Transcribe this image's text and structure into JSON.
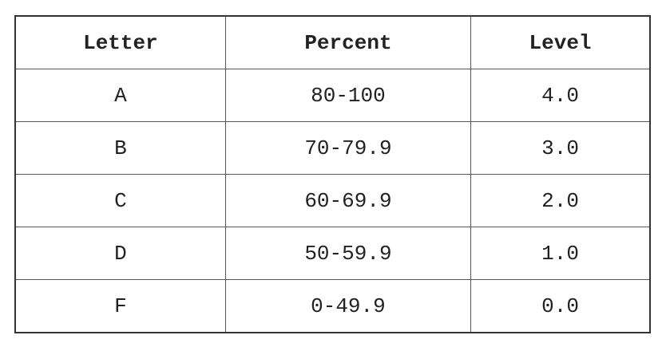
{
  "table": {
    "header": [
      "Letter",
      "Percent",
      "Level"
    ],
    "rows": [
      [
        "A",
        "80-100",
        "4.0"
      ],
      [
        "B",
        "70-79.9",
        "3.0"
      ],
      [
        "C",
        "60-69.9",
        "2.0"
      ],
      [
        "D",
        "50-59.9",
        "1.0"
      ],
      [
        "F",
        "0-49.9",
        "0.0"
      ]
    ]
  }
}
